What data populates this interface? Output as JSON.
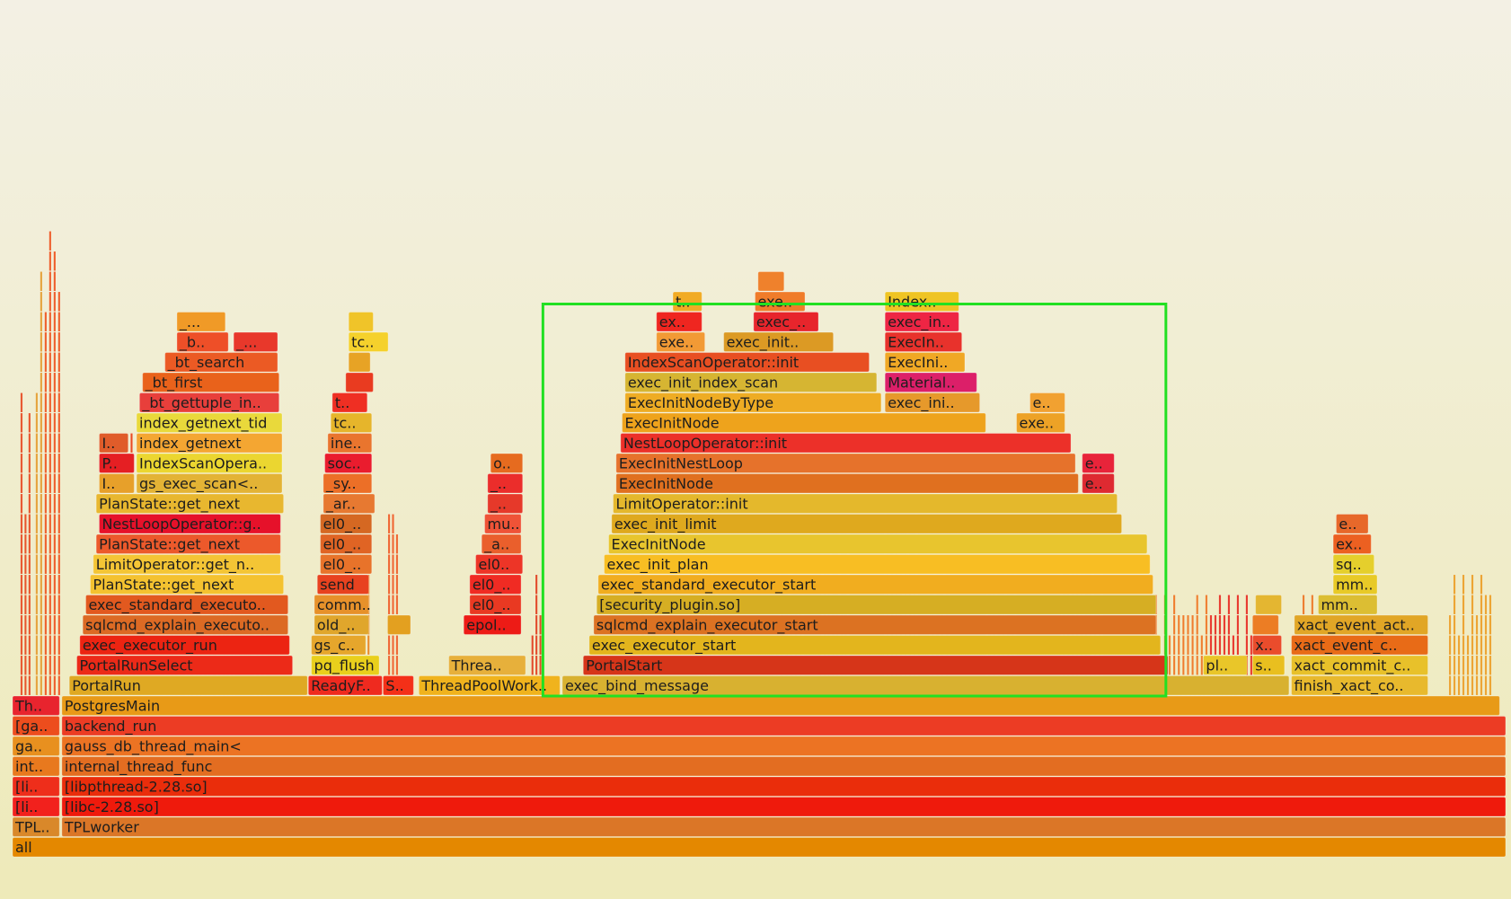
{
  "colors": {
    "background_top": "#f3f0e4",
    "background_bottom": "#eeeab9",
    "selection": "#22e022",
    "palette": [
      "#e59000",
      "#e7321c",
      "#f04711",
      "#ef5b16",
      "#f4a11f",
      "#dcc634",
      "#d9a122",
      "#f2b525",
      "#e86b22",
      "#df7b22",
      "#e61b27",
      "#f97a28",
      "#c8b12b",
      "#d15a17"
    ]
  },
  "chart_data": {
    "type": "flamegraph",
    "unit": "samples",
    "total": 1000,
    "frames": [
      {
        "label": "all",
        "level": 0,
        "start": 0,
        "width": 1000,
        "color": "#e48800"
      },
      {
        "label": "TPLworker",
        "level": 1,
        "start": 33,
        "width": 967,
        "color": "#db7627"
      },
      {
        "label": "TPLI..",
        "level": 1,
        "start": 0,
        "width": 32,
        "color": "#d9882a"
      },
      {
        "label": "[libc-2.28.so]",
        "level": 2,
        "start": 33,
        "width": 967,
        "color": "#ef1a0c"
      },
      {
        "label": "[lib..",
        "level": 2,
        "start": 0,
        "width": 32,
        "color": "#f2211d"
      },
      {
        "label": "[libpthread-2.28.so]",
        "level": 3,
        "start": 33,
        "width": 967,
        "color": "#ea2d0b"
      },
      {
        "label": "[lib..",
        "level": 3,
        "start": 0,
        "width": 32,
        "color": "#ee2e1b"
      },
      {
        "label": "internal_thread_func",
        "level": 4,
        "start": 33,
        "width": 967,
        "color": "#e36d21"
      },
      {
        "label": "int..",
        "level": 4,
        "start": 0,
        "width": 32,
        "color": "#e8791e"
      },
      {
        "label": "gauss_db_thread_main<",
        "level": 5,
        "start": 33,
        "width": 967,
        "color": "#ec7323"
      },
      {
        "label": "ga..",
        "level": 5,
        "start": 0,
        "width": 32,
        "color": "#e8901f"
      },
      {
        "label": "backend_run",
        "level": 6,
        "start": 33,
        "width": 967,
        "color": "#ec3c24"
      },
      {
        "label": "[ga..",
        "level": 6,
        "start": 0,
        "width": 32,
        "color": "#ed4d1d"
      },
      {
        "label": "PostgresMain",
        "level": 7,
        "start": 33,
        "width": 963,
        "color": "#e89a17"
      },
      {
        "label": "Th..",
        "level": 7,
        "start": 0,
        "width": 32,
        "color": "#e8242e"
      },
      {
        "label": "PortalRun",
        "level": 8,
        "start": 38,
        "width": 160,
        "color": "#dfa923"
      },
      {
        "label": "ReadyF..",
        "level": 8,
        "start": 198,
        "width": 50,
        "color": "#ef2a1f"
      },
      {
        "label": "S..",
        "level": 8,
        "start": 248,
        "width": 21,
        "color": "#f43018"
      },
      {
        "label": "ThreadPoolWork..",
        "level": 8,
        "start": 272,
        "width": 95,
        "color": "#f0b31d"
      },
      {
        "label": "exec_bind_message",
        "level": 8,
        "start": 368,
        "width": 487,
        "color": "#d8b130"
      },
      {
        "label": "finish_xact_co..",
        "level": 8,
        "start": 856,
        "width": 92,
        "color": "#e8b92d"
      },
      {
        "label": "PortalRunSelect",
        "level": 9,
        "start": 43,
        "width": 145,
        "color": "#ec2a18"
      },
      {
        "label": "pq_flush",
        "level": 9,
        "start": 200,
        "width": 46,
        "color": "#e9cf1c"
      },
      {
        "label": "Threa..",
        "level": 9,
        "start": 292,
        "width": 52,
        "color": "#e7b03b"
      },
      {
        "label": "PortalStart",
        "level": 9,
        "start": 382,
        "width": 392,
        "color": "#d63519"
      },
      {
        "label": "pl..",
        "level": 9,
        "start": 797,
        "width": 30,
        "color": "#e9c629"
      },
      {
        "label": "st..",
        "level": 9,
        "start": 830,
        "width": 22,
        "color": "#e9bf1f"
      },
      {
        "label": "xact_commit_c..",
        "level": 9,
        "start": 856,
        "width": 92,
        "color": "#e8c12a"
      },
      {
        "label": "exec_executor_run",
        "level": 10,
        "start": 45,
        "width": 141,
        "color": "#ec2412"
      },
      {
        "label": "gs_c..",
        "level": 10,
        "start": 200,
        "width": 37,
        "color": "#e6a62c"
      },
      {
        "label": "exec_executor_start",
        "level": 10,
        "start": 386,
        "width": 383,
        "color": "#e3b51d"
      },
      {
        "label": "x..",
        "level": 10,
        "start": 830,
        "width": 20,
        "color": "#ea4c2c"
      },
      {
        "label": "xact_event_c..",
        "level": 10,
        "start": 856,
        "width": 92,
        "color": "#e86b17"
      },
      {
        "label": "sqlcmd_explain_executo..",
        "level": 11,
        "start": 47,
        "width": 138,
        "color": "#dc6a24"
      },
      {
        "label": "old_s..",
        "level": 11,
        "start": 202,
        "width": 37,
        "color": "#e0a62c"
      },
      {
        "label": "o..",
        "level": 11,
        "start": 251,
        "width": 16,
        "color": "#e3a020"
      },
      {
        "label": "epoll..",
        "level": 11,
        "start": 302,
        "width": 39,
        "color": "#ed1b16"
      },
      {
        "label": "sqlcmd_explain_executor_start",
        "level": 11,
        "start": 389,
        "width": 377,
        "color": "#dc7222"
      },
      {
        "label": "x..",
        "level": 11,
        "start": 830,
        "width": 18,
        "color": "#ec7d24"
      },
      {
        "label": "xact_event_act..",
        "level": 11,
        "start": 858,
        "width": 90,
        "color": "#e1a626"
      },
      {
        "label": "exec_standard_executo..",
        "level": 12,
        "start": 49,
        "width": 136,
        "color": "#e2591f"
      },
      {
        "label": "comm..",
        "level": 12,
        "start": 202,
        "width": 37,
        "color": "#e7912a"
      },
      {
        "label": "el0_svc",
        "level": 12,
        "start": 306,
        "width": 35,
        "color": "#e93922"
      },
      {
        "label": "[security_plugin.so]",
        "level": 12,
        "start": 391,
        "width": 375,
        "color": "#d6ae23"
      },
      {
        "label": "x..",
        "level": 12,
        "start": 832,
        "width": 18,
        "color": "#e4b631"
      },
      {
        "label": "mm..",
        "level": 12,
        "start": 874,
        "width": 40,
        "color": "#dcbe33"
      },
      {
        "label": "PlanState::get_next",
        "level": 13,
        "start": 52,
        "width": 130,
        "color": "#f4c230"
      },
      {
        "label": "send",
        "level": 13,
        "start": 204,
        "width": 35,
        "color": "#e8421f"
      },
      {
        "label": "el0_s..",
        "level": 13,
        "start": 306,
        "width": 35,
        "color": "#f02b23"
      },
      {
        "label": "exec_standard_executor_start",
        "level": 13,
        "start": 392,
        "width": 372,
        "color": "#f1ad1f"
      },
      {
        "label": "mm..",
        "level": 13,
        "start": 884,
        "width": 30,
        "color": "#e8ca27"
      },
      {
        "label": "LimitOperator::get_n..",
        "level": 14,
        "start": 54,
        "width": 126,
        "color": "#f4c535"
      },
      {
        "label": "el0_svc",
        "level": 14,
        "start": 206,
        "width": 35,
        "color": "#e8732a"
      },
      {
        "label": "el0_s..",
        "level": 14,
        "start": 310,
        "width": 32,
        "color": "#ed3527"
      },
      {
        "label": "exec_init_plan",
        "level": 14,
        "start": 396,
        "width": 366,
        "color": "#f8be23"
      },
      {
        "label": "sq..",
        "level": 14,
        "start": 884,
        "width": 28,
        "color": "#e5cf2c"
      },
      {
        "label": "PlanState::get_next",
        "level": 15,
        "start": 56,
        "width": 124,
        "color": "#ec592b"
      },
      {
        "label": "el0_s..",
        "level": 15,
        "start": 206,
        "width": 35,
        "color": "#e06424"
      },
      {
        "label": "_a..",
        "level": 15,
        "start": 314,
        "width": 27,
        "color": "#ea5f2c"
      },
      {
        "label": "ExecInitNode",
        "level": 15,
        "start": 399,
        "width": 361,
        "color": "#e8c52e"
      },
      {
        "label": "ex..",
        "level": 15,
        "start": 884,
        "width": 26,
        "color": "#ec6021"
      },
      {
        "label": "NestLoopOperator::g..",
        "level": 16,
        "start": 58,
        "width": 122,
        "color": "#e6112a"
      },
      {
        "label": "el0_s..",
        "level": 16,
        "start": 206,
        "width": 35,
        "color": "#d56822"
      },
      {
        "label": "mu..",
        "level": 16,
        "start": 316,
        "width": 25,
        "color": "#ef5337"
      },
      {
        "label": "exec_init_limit",
        "level": 16,
        "start": 401,
        "width": 342,
        "color": "#dfa91e"
      },
      {
        "label": "e..",
        "level": 16,
        "start": 886,
        "width": 22,
        "color": "#e7682a"
      },
      {
        "label": "PlanState::get_next",
        "level": 17,
        "start": 56,
        "width": 126,
        "color": "#e8b72f"
      },
      {
        "label": "_ar..",
        "level": 17,
        "start": 208,
        "width": 35,
        "color": "#e77931"
      },
      {
        "label": "_...",
        "level": 17,
        "start": 318,
        "width": 24,
        "color": "#e6392a"
      },
      {
        "label": "LimitOperator::init",
        "level": 17,
        "start": 402,
        "width": 338,
        "color": "#e4b82c"
      },
      {
        "label": "I..",
        "level": 18,
        "start": 58,
        "width": 24,
        "color": "#e7a02a"
      },
      {
        "label": "gs_exec_scan<..",
        "level": 18,
        "start": 83,
        "width": 98,
        "color": "#e3b335"
      },
      {
        "label": "_sy..",
        "level": 18,
        "start": 208,
        "width": 33,
        "color": "#ec6f27"
      },
      {
        "label": "_...",
        "level": 18,
        "start": 318,
        "width": 24,
        "color": "#eb2d2b"
      },
      {
        "label": "ExecInitNode",
        "level": 18,
        "start": 404,
        "width": 310,
        "color": "#e0701f"
      },
      {
        "label": "e..",
        "level": 18,
        "start": 716,
        "width": 22,
        "color": "#de2a31"
      },
      {
        "label": "P..",
        "level": 19,
        "start": 58,
        "width": 24,
        "color": "#e51f23"
      },
      {
        "label": "IndexScanOpera..",
        "level": 19,
        "start": 83,
        "width": 98,
        "color": "#ebd630"
      },
      {
        "label": "sock..",
        "level": 19,
        "start": 209,
        "width": 32,
        "color": "#ea1c2e"
      },
      {
        "label": "os..",
        "level": 19,
        "start": 320,
        "width": 22,
        "color": "#e66b1f"
      },
      {
        "label": "ExecInitNestLoop",
        "level": 19,
        "start": 404,
        "width": 308,
        "color": "#e6722b"
      },
      {
        "label": "e..",
        "level": 19,
        "start": 716,
        "width": 22,
        "color": "#e8243a"
      },
      {
        "label": "I..",
        "level": 20,
        "start": 58,
        "width": 20,
        "color": "#e05c2a"
      },
      {
        "label": "index_getnext",
        "level": 20,
        "start": 83,
        "width": 98,
        "color": "#f4a632"
      },
      {
        "label": "inet_..",
        "level": 20,
        "start": 211,
        "width": 30,
        "color": "#e9752e"
      },
      {
        "label": "NestLoopOperator::init",
        "level": 20,
        "start": 407,
        "width": 302,
        "color": "#ec3029"
      },
      {
        "label": "index_getnext_tid",
        "level": 21,
        "start": 83,
        "width": 98,
        "color": "#e9d93b"
      },
      {
        "label": "tcp_..",
        "level": 21,
        "start": 213,
        "width": 28,
        "color": "#e6b52b"
      },
      {
        "label": "ExecInitNode",
        "level": 21,
        "start": 408,
        "width": 244,
        "color": "#eea31c"
      },
      {
        "label": "exe..",
        "level": 21,
        "start": 672,
        "width": 33,
        "color": "#eda226"
      },
      {
        "label": "_bt_gettuple_in..",
        "level": 22,
        "start": 85,
        "width": 94,
        "color": "#e83f3b"
      },
      {
        "label": "tcp_..",
        "level": 22,
        "start": 214,
        "width": 24,
        "color": "#ef2f23"
      },
      {
        "label": "ExecInitNodeByType",
        "level": 22,
        "start": 410,
        "width": 172,
        "color": "#eeac24"
      },
      {
        "label": "exec_ini..",
        "level": 22,
        "start": 584,
        "width": 64,
        "color": "#e6992b"
      },
      {
        "label": "e..",
        "level": 22,
        "start": 681,
        "width": 24,
        "color": "#f1a131"
      },
      {
        "label": "_bt_first",
        "level": 23,
        "start": 87,
        "width": 92,
        "color": "#e9621b"
      },
      {
        "label": "tc..",
        "level": 23,
        "start": 223,
        "width": 19,
        "color": "#e93b20"
      },
      {
        "label": "exec_init_index_scan",
        "level": 23,
        "start": 410,
        "width": 169,
        "color": "#d6b532"
      },
      {
        "label": "Material..",
        "level": 23,
        "start": 584,
        "width": 62,
        "color": "#dc1f69"
      },
      {
        "label": "_bt_search",
        "level": 24,
        "start": 102,
        "width": 76,
        "color": "#eb5a24"
      },
      {
        "label": "_...",
        "level": 24,
        "start": 225,
        "width": 15,
        "color": "#e7a325"
      },
      {
        "label": "IndexScanOperator::init",
        "level": 24,
        "start": 410,
        "width": 164,
        "color": "#e84f22"
      },
      {
        "label": "ExecIni..",
        "level": 24,
        "start": 584,
        "width": 54,
        "color": "#f0a825"
      },
      {
        "label": "_b..",
        "level": 25,
        "start": 110,
        "width": 35,
        "color": "#ee4f28"
      },
      {
        "label": "_...",
        "level": 25,
        "start": 148,
        "width": 30,
        "color": "#e8382b"
      },
      {
        "label": "tc..",
        "level": 25,
        "start": 225,
        "width": 27,
        "color": "#f5d12c"
      },
      {
        "label": "exe..",
        "level": 25,
        "start": 431,
        "width": 33,
        "color": "#f29a35"
      },
      {
        "label": "exec_init..",
        "level": 25,
        "start": 476,
        "width": 74,
        "color": "#dc9a24"
      },
      {
        "label": "ExecIn..",
        "level": 25,
        "start": 584,
        "width": 52,
        "color": "#e8322c"
      },
      {
        "label": "_...",
        "level": 26,
        "start": 110,
        "width": 33,
        "color": "#f09a27"
      },
      {
        "label": "_...",
        "level": 26,
        "start": 225,
        "width": 17,
        "color": "#f0c429"
      },
      {
        "label": "ex..",
        "level": 26,
        "start": 431,
        "width": 31,
        "color": "#ef2620"
      },
      {
        "label": "exec_I..",
        "level": 26,
        "start": 496,
        "width": 44,
        "color": "#e7252c"
      },
      {
        "label": "exec_in..",
        "level": 26,
        "start": 584,
        "width": 50,
        "color": "#ee2544"
      },
      {
        "label": "t..",
        "level": 27,
        "start": 442,
        "width": 20,
        "color": "#f1ab24"
      },
      {
        "label": "exec..",
        "level": 27,
        "start": 497,
        "width": 34,
        "color": "#f07c2a"
      },
      {
        "label": "Index..",
        "level": 27,
        "start": 584,
        "width": 50,
        "color": "#efc424"
      },
      {
        "label": "e..",
        "level": 28,
        "start": 499,
        "width": 18,
        "color": "#ef812c"
      }
    ],
    "spikes": [
      {
        "start": 4,
        "width": 8,
        "levels": 15,
        "color": "#e7542b"
      },
      {
        "start": 14,
        "width": 6,
        "levels": 22,
        "color": "#e5a23a"
      },
      {
        "start": 20,
        "width": 12,
        "levels": 26,
        "color": "#ee5e2a"
      },
      {
        "start": 60,
        "width": 8,
        "levels": 12,
        "color": "#e47d2c"
      },
      {
        "start": 75,
        "width": 8,
        "levels": 14,
        "color": "#eb4a22"
      },
      {
        "start": 100,
        "width": 12,
        "levels": 13,
        "color": "#ef9a28"
      },
      {
        "start": 114,
        "width": 20,
        "levels": 12,
        "color": "#ea3028"
      },
      {
        "start": 135,
        "width": 14,
        "levels": 8,
        "color": "#eda33a"
      },
      {
        "start": 160,
        "width": 10,
        "levels": 11,
        "color": "#e23a28"
      },
      {
        "start": 225,
        "width": 14,
        "levels": 14,
        "color": "#e98a2b"
      },
      {
        "start": 250,
        "width": 8,
        "levels": 10,
        "color": "#ef6530"
      },
      {
        "start": 346,
        "width": 8,
        "levels": 6,
        "color": "#e14a28"
      },
      {
        "start": 418,
        "width": 10,
        "levels": 12,
        "color": "#ef3a2b"
      },
      {
        "start": 458,
        "width": 14,
        "levels": 8,
        "color": "#f07a26"
      },
      {
        "start": 508,
        "width": 22,
        "levels": 6,
        "color": "#ea2f22"
      },
      {
        "start": 540,
        "width": 20,
        "levels": 8,
        "color": "#f0a42a"
      },
      {
        "start": 582,
        "width": 24,
        "levels": 9,
        "color": "#ef6c33"
      },
      {
        "start": 612,
        "width": 16,
        "levels": 7,
        "color": "#ec472b"
      },
      {
        "start": 650,
        "width": 22,
        "levels": 6,
        "color": "#f0952a"
      },
      {
        "start": 700,
        "width": 30,
        "levels": 7,
        "color": "#ea5a24"
      },
      {
        "start": 760,
        "width": 40,
        "levels": 5,
        "color": "#ef7d2c"
      },
      {
        "start": 800,
        "width": 30,
        "levels": 5,
        "color": "#e8362a"
      },
      {
        "start": 862,
        "width": 50,
        "levels": 5,
        "color": "#ed7b2a"
      },
      {
        "start": 960,
        "width": 30,
        "levels": 6,
        "color": "#eca22e"
      }
    ],
    "selection": {
      "start": 355,
      "end": 772,
      "level_top": 26.4,
      "level_bottom": 8
    }
  }
}
